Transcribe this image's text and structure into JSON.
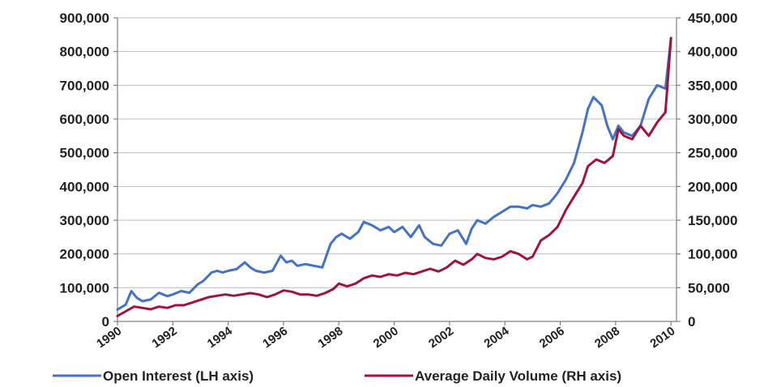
{
  "chart_data": {
    "type": "line",
    "title": "",
    "xlabel": "",
    "ylabel_left": "",
    "ylabel_right": "",
    "x_ticks": [
      "1990",
      "1992",
      "1994",
      "1996",
      "1998",
      "2000",
      "2002",
      "2004",
      "2006",
      "2008",
      "2010"
    ],
    "x_range": [
      1990,
      2010.2
    ],
    "y_left": {
      "range": [
        0,
        900000
      ],
      "ticks": [
        0,
        100000,
        200000,
        300000,
        400000,
        500000,
        600000,
        700000,
        800000,
        900000
      ],
      "tick_labels": [
        "0",
        "100,000",
        "200,000",
        "300,000",
        "400,000",
        "500,000",
        "600,000",
        "700,000",
        "800,000",
        "900,000"
      ]
    },
    "y_right": {
      "range": [
        0,
        450000
      ],
      "ticks": [
        0,
        50000,
        100000,
        150000,
        200000,
        250000,
        300000,
        350000,
        400000,
        450000
      ],
      "tick_labels": [
        "0",
        "50,000",
        "100,000",
        "150,000",
        "200,000",
        "250,000",
        "300,000",
        "350,000",
        "400,000",
        "450,000"
      ]
    },
    "grid": true,
    "legend_position": "bottom",
    "series": [
      {
        "name": "Open Interest (LH axis)",
        "axis": "left",
        "color": "#4472C4",
        "x": [
          1990.0,
          1990.3,
          1990.5,
          1990.7,
          1990.9,
          1991.2,
          1991.5,
          1991.8,
          1992.0,
          1992.3,
          1992.6,
          1992.9,
          1993.1,
          1993.4,
          1993.6,
          1993.8,
          1994.0,
          1994.3,
          1994.6,
          1994.8,
          1995.0,
          1995.3,
          1995.6,
          1995.9,
          1996.1,
          1996.3,
          1996.5,
          1996.8,
          1997.1,
          1997.4,
          1997.7,
          1997.9,
          1998.1,
          1998.4,
          1998.7,
          1998.9,
          1999.2,
          1999.5,
          1999.8,
          2000.0,
          2000.3,
          2000.6,
          2000.9,
          2001.1,
          2001.4,
          2001.7,
          2002.0,
          2002.3,
          2002.6,
          2002.8,
          2003.0,
          2003.3,
          2003.6,
          2003.9,
          2004.2,
          2004.5,
          2004.8,
          2005.0,
          2005.3,
          2005.6,
          2005.9,
          2006.2,
          2006.5,
          2006.8,
          2007.0,
          2007.2,
          2007.5,
          2007.7,
          2007.9,
          2008.1,
          2008.3,
          2008.6,
          2008.9,
          2009.2,
          2009.5,
          2009.8,
          2010.0
        ],
        "values": [
          35000,
          50000,
          90000,
          70000,
          60000,
          65000,
          85000,
          75000,
          80000,
          90000,
          85000,
          110000,
          120000,
          145000,
          150000,
          145000,
          150000,
          155000,
          175000,
          160000,
          150000,
          145000,
          150000,
          195000,
          175000,
          180000,
          165000,
          170000,
          165000,
          160000,
          230000,
          250000,
          260000,
          245000,
          265000,
          295000,
          285000,
          270000,
          280000,
          265000,
          280000,
          250000,
          285000,
          250000,
          230000,
          225000,
          260000,
          270000,
          230000,
          275000,
          300000,
          290000,
          310000,
          325000,
          340000,
          340000,
          335000,
          345000,
          340000,
          350000,
          380000,
          420000,
          470000,
          560000,
          630000,
          665000,
          640000,
          580000,
          540000,
          580000,
          560000,
          550000,
          580000,
          660000,
          700000,
          690000,
          840000
        ]
      },
      {
        "name": "Average Daily Volume (RH axis)",
        "axis": "right",
        "color": "#A0143C",
        "x": [
          1990.0,
          1990.3,
          1990.6,
          1990.9,
          1991.2,
          1991.5,
          1991.8,
          1992.1,
          1992.4,
          1992.7,
          1993.0,
          1993.3,
          1993.6,
          1993.9,
          1994.2,
          1994.5,
          1994.8,
          1995.1,
          1995.4,
          1995.7,
          1996.0,
          1996.3,
          1996.6,
          1996.9,
          1997.2,
          1997.5,
          1997.8,
          1998.0,
          1998.3,
          1998.6,
          1998.9,
          1999.2,
          1999.5,
          1999.8,
          2000.1,
          2000.4,
          2000.7,
          2001.0,
          2001.3,
          2001.6,
          2001.9,
          2002.2,
          2002.5,
          2002.8,
          2003.0,
          2003.3,
          2003.6,
          2003.9,
          2004.2,
          2004.5,
          2004.8,
          2005.0,
          2005.3,
          2005.6,
          2005.9,
          2006.2,
          2006.5,
          2006.8,
          2007.0,
          2007.3,
          2007.6,
          2007.9,
          2008.1,
          2008.3,
          2008.6,
          2008.9,
          2009.2,
          2009.5,
          2009.8,
          2010.0
        ],
        "values": [
          8000,
          15000,
          22000,
          20000,
          18000,
          22000,
          20000,
          24000,
          24000,
          28000,
          32000,
          36000,
          38000,
          40000,
          38000,
          40000,
          42000,
          40000,
          36000,
          40000,
          46000,
          44000,
          40000,
          40000,
          38000,
          42000,
          48000,
          56000,
          52000,
          56000,
          64000,
          68000,
          66000,
          70000,
          68000,
          72000,
          70000,
          74000,
          78000,
          74000,
          80000,
          90000,
          84000,
          92000,
          100000,
          94000,
          92000,
          96000,
          104000,
          100000,
          92000,
          96000,
          120000,
          128000,
          140000,
          165000,
          185000,
          205000,
          230000,
          240000,
          235000,
          245000,
          285000,
          275000,
          270000,
          290000,
          275000,
          295000,
          310000,
          420000
        ]
      }
    ]
  }
}
